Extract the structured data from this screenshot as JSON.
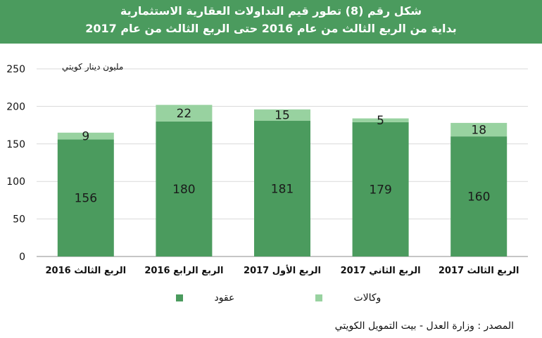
{
  "header": {
    "title_line1": "شكل رقم (8) تطور قيم التداولات العقارية الاستثمارية",
    "title_line2": "بداية من الربع الثالث من عام 2016 حتى الربع الثالث من عام 2017"
  },
  "unit_label": "مليون دينار كويتي",
  "source": "المصدر : وزارة العدل - بيت التمويل الكويتي",
  "colors": {
    "contracts": "#4b9b5e",
    "agencies": "#98d2a0",
    "grid": "#d9d9d9",
    "header_bg": "#4b9b5e"
  },
  "chart_data": {
    "type": "bar",
    "stacked": true,
    "categories": [
      "الربع الثالث 2016",
      "الربع الرابع 2016",
      "الربع الأول 2017",
      "الربع الثاني 2017",
      "الربع الثالث 2017"
    ],
    "series": [
      {
        "name": "عقود",
        "values": [
          156,
          180,
          181,
          179,
          160
        ]
      },
      {
        "name": "وكالات",
        "values": [
          9,
          22,
          15,
          5,
          18
        ]
      }
    ],
    "y_ticks": [
      0,
      50,
      100,
      150,
      200,
      250
    ],
    "ylim": [
      0,
      250
    ],
    "grid": true,
    "legend": "bottom"
  }
}
